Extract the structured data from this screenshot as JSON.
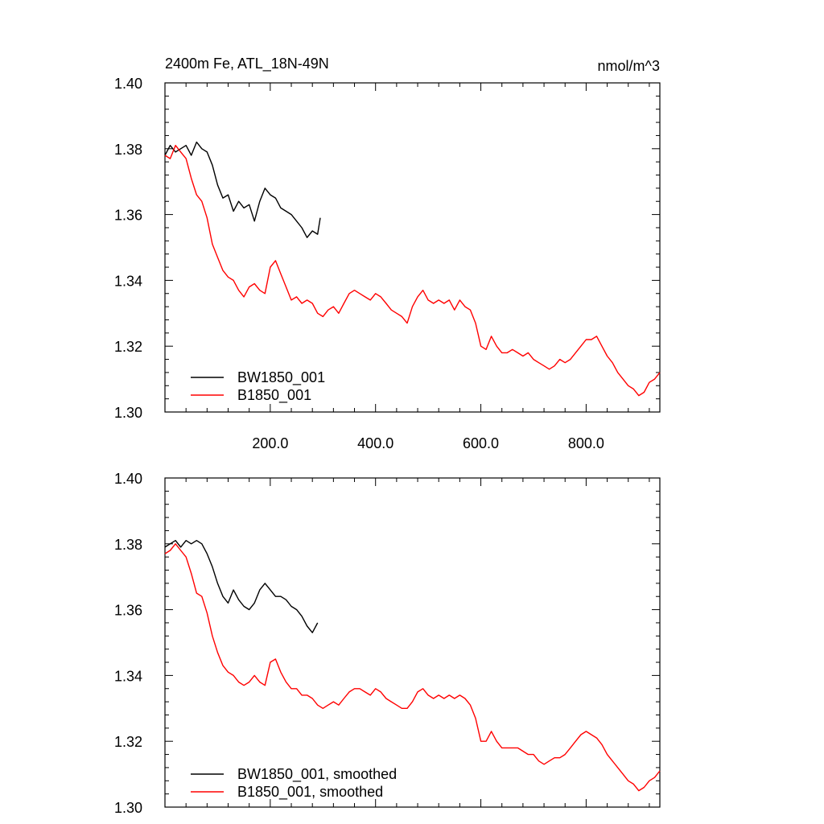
{
  "chart_data": [
    {
      "type": "line",
      "title": "2400m Fe, ATL_18N-49N",
      "units": "nmol/m^3",
      "ylim": [
        1.3,
        1.4
      ],
      "xlim": [
        0,
        940
      ],
      "yticks": [
        "1.30",
        "1.32",
        "1.34",
        "1.36",
        "1.38",
        "1.40"
      ],
      "xticks": [
        "200.0",
        "400.0",
        "600.0",
        "800.0"
      ],
      "legend_position": "bottom-left",
      "series": [
        {
          "name": "BW1850_001",
          "color": "#000000",
          "x": [
            0,
            10,
            20,
            30,
            40,
            50,
            60,
            70,
            80,
            90,
            100,
            110,
            120,
            130,
            140,
            150,
            160,
            170,
            180,
            190,
            200,
            210,
            220,
            230,
            240,
            250,
            260,
            270,
            280,
            290,
            295
          ],
          "y": [
            1.378,
            1.381,
            1.379,
            1.38,
            1.381,
            1.378,
            1.382,
            1.38,
            1.379,
            1.375,
            1.369,
            1.365,
            1.366,
            1.361,
            1.364,
            1.362,
            1.363,
            1.358,
            1.364,
            1.368,
            1.366,
            1.365,
            1.362,
            1.361,
            1.36,
            1.358,
            1.356,
            1.353,
            1.355,
            1.354,
            1.359
          ]
        },
        {
          "name": "B1850_001",
          "color": "#ff0000",
          "x": [
            0,
            10,
            20,
            30,
            40,
            50,
            60,
            70,
            80,
            90,
            100,
            110,
            120,
            130,
            140,
            150,
            160,
            170,
            180,
            190,
            200,
            210,
            220,
            230,
            240,
            250,
            260,
            270,
            280,
            290,
            300,
            310,
            320,
            330,
            340,
            350,
            360,
            370,
            380,
            390,
            400,
            410,
            420,
            430,
            440,
            450,
            460,
            470,
            480,
            490,
            500,
            510,
            520,
            530,
            540,
            550,
            560,
            570,
            580,
            590,
            600,
            610,
            620,
            630,
            640,
            650,
            660,
            670,
            680,
            690,
            700,
            710,
            720,
            730,
            740,
            750,
            760,
            770,
            780,
            790,
            800,
            810,
            820,
            830,
            840,
            850,
            860,
            870,
            880,
            890,
            900,
            910,
            920,
            930,
            940
          ],
          "y": [
            1.378,
            1.377,
            1.381,
            1.379,
            1.377,
            1.371,
            1.366,
            1.364,
            1.359,
            1.351,
            1.347,
            1.343,
            1.341,
            1.34,
            1.337,
            1.335,
            1.338,
            1.339,
            1.337,
            1.336,
            1.344,
            1.346,
            1.342,
            1.338,
            1.334,
            1.335,
            1.333,
            1.334,
            1.333,
            1.33,
            1.329,
            1.331,
            1.332,
            1.33,
            1.333,
            1.336,
            1.337,
            1.336,
            1.335,
            1.334,
            1.336,
            1.335,
            1.333,
            1.331,
            1.33,
            1.329,
            1.327,
            1.332,
            1.335,
            1.337,
            1.334,
            1.333,
            1.334,
            1.333,
            1.334,
            1.331,
            1.334,
            1.332,
            1.331,
            1.327,
            1.32,
            1.319,
            1.323,
            1.32,
            1.318,
            1.318,
            1.319,
            1.318,
            1.317,
            1.318,
            1.316,
            1.315,
            1.314,
            1.313,
            1.314,
            1.316,
            1.315,
            1.316,
            1.318,
            1.32,
            1.322,
            1.322,
            1.323,
            1.32,
            1.317,
            1.315,
            1.312,
            1.31,
            1.308,
            1.307,
            1.305,
            1.306,
            1.309,
            1.31,
            1.312
          ]
        }
      ]
    },
    {
      "type": "line",
      "title": "",
      "units": "",
      "ylim": [
        1.3,
        1.4
      ],
      "xlim": [
        0,
        940
      ],
      "yticks": [
        "1.30",
        "1.32",
        "1.34",
        "1.36",
        "1.38",
        "1.40"
      ],
      "xticks": [],
      "legend_position": "bottom-left",
      "series": [
        {
          "name": "BW1850_001, smoothed",
          "color": "#000000",
          "x": [
            0,
            10,
            20,
            30,
            40,
            50,
            60,
            70,
            80,
            90,
            100,
            110,
            120,
            130,
            140,
            150,
            160,
            170,
            180,
            190,
            200,
            210,
            220,
            230,
            240,
            250,
            260,
            270,
            280,
            290
          ],
          "y": [
            1.379,
            1.38,
            1.381,
            1.379,
            1.381,
            1.38,
            1.381,
            1.38,
            1.377,
            1.373,
            1.368,
            1.364,
            1.362,
            1.366,
            1.363,
            1.361,
            1.36,
            1.362,
            1.366,
            1.368,
            1.366,
            1.364,
            1.364,
            1.363,
            1.361,
            1.36,
            1.358,
            1.355,
            1.353,
            1.356
          ]
        },
        {
          "name": "B1850_001, smoothed",
          "color": "#ff0000",
          "x": [
            0,
            10,
            20,
            30,
            40,
            50,
            60,
            70,
            80,
            90,
            100,
            110,
            120,
            130,
            140,
            150,
            160,
            170,
            180,
            190,
            200,
            210,
            220,
            230,
            240,
            250,
            260,
            270,
            280,
            290,
            300,
            310,
            320,
            330,
            340,
            350,
            360,
            370,
            380,
            390,
            400,
            410,
            420,
            430,
            440,
            450,
            460,
            470,
            480,
            490,
            500,
            510,
            520,
            530,
            540,
            550,
            560,
            570,
            580,
            590,
            600,
            610,
            620,
            630,
            640,
            650,
            660,
            670,
            680,
            690,
            700,
            710,
            720,
            730,
            740,
            750,
            760,
            770,
            780,
            790,
            800,
            810,
            820,
            830,
            840,
            850,
            860,
            870,
            880,
            890,
            900,
            910,
            920,
            930,
            940
          ],
          "y": [
            1.377,
            1.378,
            1.38,
            1.378,
            1.376,
            1.371,
            1.365,
            1.364,
            1.359,
            1.352,
            1.347,
            1.343,
            1.341,
            1.34,
            1.338,
            1.337,
            1.338,
            1.34,
            1.338,
            1.337,
            1.344,
            1.345,
            1.341,
            1.338,
            1.336,
            1.336,
            1.334,
            1.334,
            1.333,
            1.331,
            1.33,
            1.331,
            1.332,
            1.331,
            1.333,
            1.335,
            1.336,
            1.336,
            1.335,
            1.334,
            1.336,
            1.335,
            1.333,
            1.332,
            1.331,
            1.33,
            1.33,
            1.332,
            1.335,
            1.336,
            1.334,
            1.333,
            1.334,
            1.333,
            1.334,
            1.333,
            1.334,
            1.333,
            1.331,
            1.327,
            1.32,
            1.32,
            1.323,
            1.32,
            1.318,
            1.318,
            1.318,
            1.318,
            1.317,
            1.316,
            1.316,
            1.314,
            1.313,
            1.314,
            1.315,
            1.315,
            1.316,
            1.318,
            1.32,
            1.322,
            1.323,
            1.322,
            1.321,
            1.319,
            1.316,
            1.314,
            1.312,
            1.31,
            1.308,
            1.307,
            1.305,
            1.306,
            1.308,
            1.309,
            1.311
          ]
        }
      ]
    }
  ]
}
